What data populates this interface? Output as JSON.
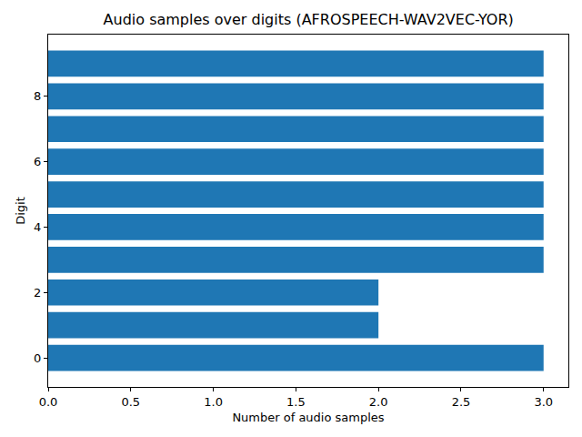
{
  "chart_data": {
    "type": "bar",
    "orientation": "horizontal",
    "title": "Audio samples over digits (AFROSPEECH-WAV2VEC-YOR)",
    "x_label": "Number of audio samples",
    "y_label": "Digit",
    "categories": [
      0,
      1,
      2,
      3,
      4,
      5,
      6,
      7,
      8,
      9
    ],
    "values": [
      3,
      2,
      2,
      3,
      3,
      3,
      3,
      3,
      3,
      3
    ],
    "color": "#1f77b4",
    "xlim": [
      0,
      3.15
    ],
    "xticks": [
      {
        "value": 0,
        "label": "0.0"
      },
      0.5,
      {
        "value": 1,
        "label": "1.0"
      },
      1.5,
      {
        "value": 2,
        "label": "2.0"
      },
      2.5,
      {
        "value": 3,
        "label": "3.0"
      }
    ],
    "ylim": [
      -0.89,
      9.89
    ],
    "yticks": [
      0,
      2,
      4,
      6,
      8
    ],
    "grid": false
  }
}
